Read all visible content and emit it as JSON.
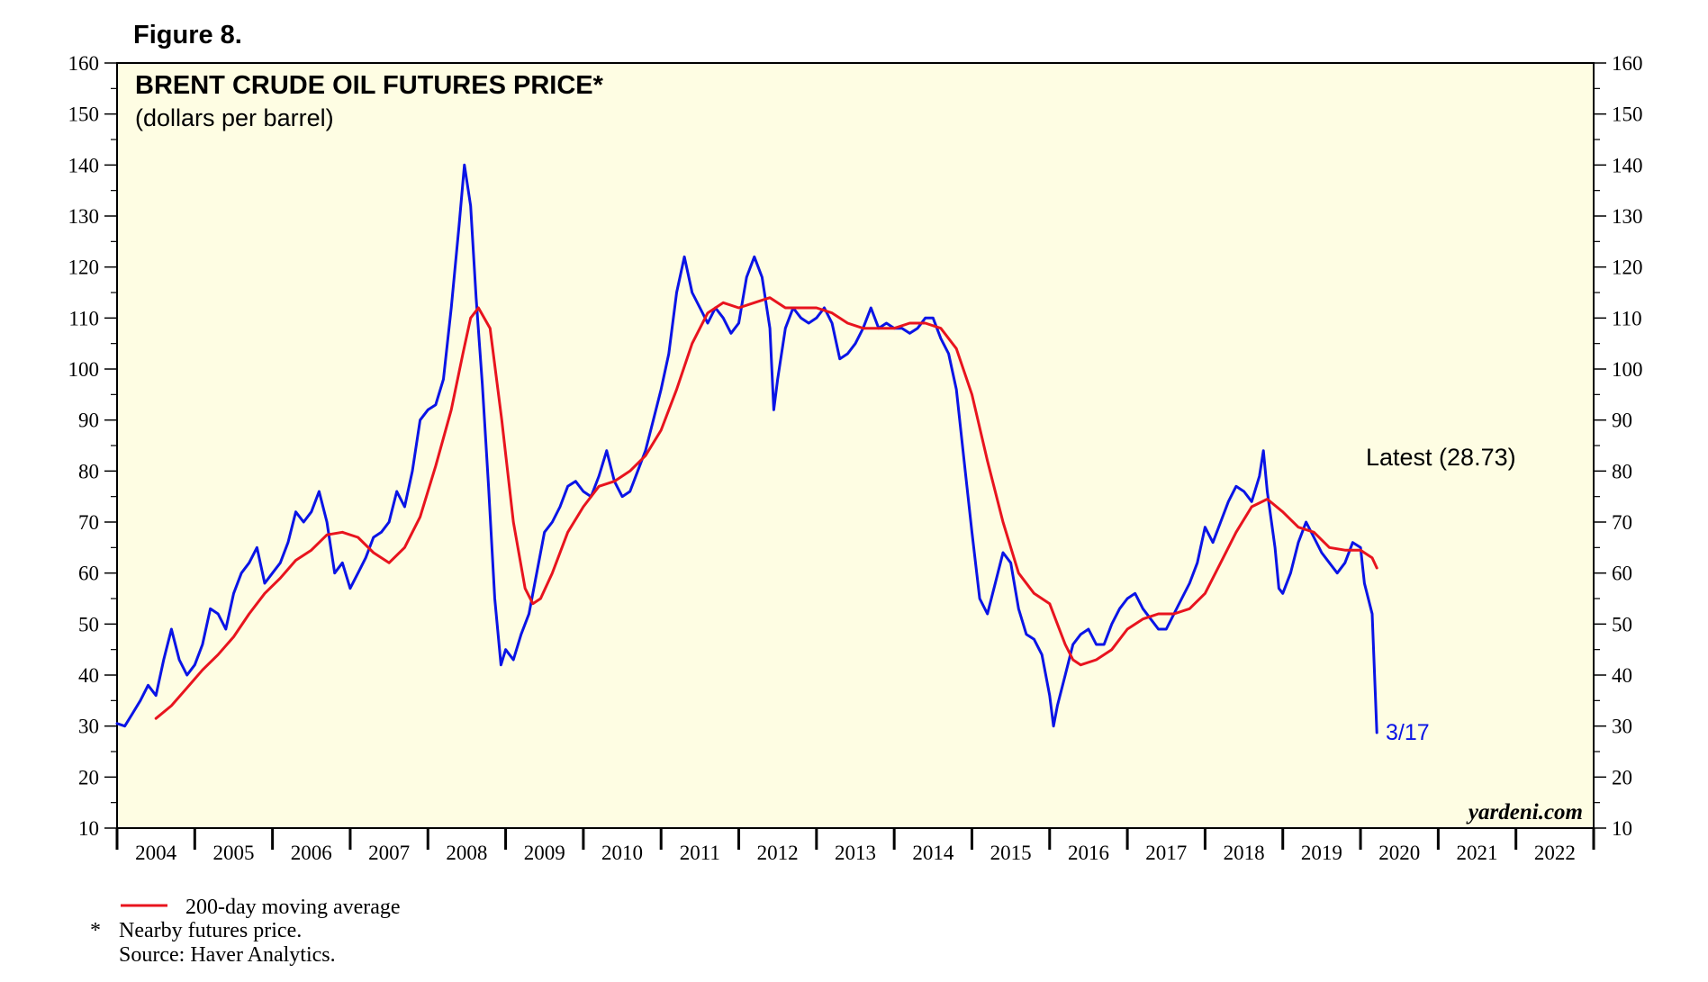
{
  "figure_label": "Figure 8.",
  "watermark": "yardeni.com",
  "footnotes": {
    "legend_ma": "200-day moving average",
    "asterisk": "*",
    "note": "Nearby futures price.",
    "source": "Source: Haver Analytics."
  },
  "colors": {
    "price": "#0a14e6",
    "moving_average": "#e8141e",
    "plot_bg": "#fefde3",
    "frame": "#000000"
  },
  "chart_data": {
    "type": "line",
    "title": "BRENT CRUDE OIL FUTURES PRICE*",
    "subtitle": "(dollars per barrel)",
    "ylim": [
      10,
      160
    ],
    "yticks": [
      10,
      20,
      30,
      40,
      50,
      60,
      70,
      80,
      90,
      100,
      110,
      120,
      130,
      140,
      150,
      160
    ],
    "xlim": [
      2004.0,
      2023.0
    ],
    "x_tick_labels": [
      "2004",
      "2005",
      "2006",
      "2007",
      "2008",
      "2009",
      "2010",
      "2011",
      "2012",
      "2013",
      "2014",
      "2015",
      "2016",
      "2017",
      "2018",
      "2019",
      "2020",
      "2021",
      "2022"
    ],
    "latest_label": "Latest (28.73)",
    "latest_date_label": "3/17",
    "latest_value": 28.73,
    "series": [
      {
        "name": "Brent crude oil futures price",
        "color": "#0a14e6",
        "x": [
          2004.0,
          2004.1,
          2004.2,
          2004.3,
          2004.4,
          2004.5,
          2004.6,
          2004.7,
          2004.8,
          2004.9,
          2005.0,
          2005.1,
          2005.2,
          2005.3,
          2005.4,
          2005.5,
          2005.6,
          2005.7,
          2005.8,
          2005.9,
          2006.0,
          2006.1,
          2006.2,
          2006.3,
          2006.4,
          2006.5,
          2006.6,
          2006.7,
          2006.8,
          2006.9,
          2007.0,
          2007.1,
          2007.2,
          2007.3,
          2007.4,
          2007.5,
          2007.6,
          2007.7,
          2007.8,
          2007.9,
          2008.0,
          2008.1,
          2008.2,
          2008.3,
          2008.4,
          2008.47,
          2008.55,
          2008.62,
          2008.7,
          2008.78,
          2008.86,
          2008.94,
          2009.0,
          2009.1,
          2009.2,
          2009.3,
          2009.4,
          2009.5,
          2009.6,
          2009.7,
          2009.8,
          2009.9,
          2010.0,
          2010.1,
          2010.2,
          2010.3,
          2010.4,
          2010.5,
          2010.6,
          2010.7,
          2010.8,
          2010.9,
          2011.0,
          2011.1,
          2011.2,
          2011.3,
          2011.4,
          2011.5,
          2011.6,
          2011.7,
          2011.8,
          2011.9,
          2012.0,
          2012.1,
          2012.2,
          2012.3,
          2012.4,
          2012.45,
          2012.5,
          2012.6,
          2012.7,
          2012.8,
          2012.9,
          2013.0,
          2013.1,
          2013.2,
          2013.3,
          2013.4,
          2013.5,
          2013.6,
          2013.7,
          2013.8,
          2013.9,
          2014.0,
          2014.1,
          2014.2,
          2014.3,
          2014.4,
          2014.5,
          2014.6,
          2014.7,
          2014.8,
          2014.9,
          2015.0,
          2015.1,
          2015.2,
          2015.3,
          2015.4,
          2015.5,
          2015.6,
          2015.7,
          2015.8,
          2015.9,
          2016.0,
          2016.05,
          2016.1,
          2016.2,
          2016.3,
          2016.4,
          2016.5,
          2016.6,
          2016.7,
          2016.8,
          2016.9,
          2017.0,
          2017.1,
          2017.2,
          2017.3,
          2017.4,
          2017.5,
          2017.6,
          2017.7,
          2017.8,
          2017.9,
          2018.0,
          2018.1,
          2018.2,
          2018.3,
          2018.4,
          2018.5,
          2018.6,
          2018.7,
          2018.75,
          2018.8,
          2018.9,
          2018.95,
          2019.0,
          2019.1,
          2019.2,
          2019.3,
          2019.4,
          2019.5,
          2019.6,
          2019.7,
          2019.8,
          2019.9,
          2020.0,
          2020.05,
          2020.1,
          2020.15,
          2020.21
        ],
        "values": [
          30.5,
          30.0,
          32.5,
          35.0,
          38.0,
          36.0,
          43.0,
          49.0,
          43.0,
          40.0,
          42.0,
          46.0,
          53.0,
          52.0,
          49.0,
          56.0,
          60.0,
          62.0,
          65.0,
          58.0,
          60.0,
          62.0,
          66.0,
          72.0,
          70.0,
          72.0,
          76.0,
          70.0,
          60.0,
          62.0,
          57.0,
          60.0,
          63.0,
          67.0,
          68.0,
          70.0,
          76.0,
          73.0,
          80.0,
          90.0,
          92.0,
          93.0,
          98.0,
          112.0,
          128.0,
          140.0,
          132.0,
          114.0,
          97.0,
          77.0,
          55.0,
          42.0,
          45.0,
          43.0,
          48.0,
          52.0,
          60.0,
          68.0,
          70.0,
          73.0,
          77.0,
          78.0,
          76.0,
          75.0,
          79.0,
          84.0,
          78.0,
          75.0,
          76.0,
          80.0,
          84.0,
          90.0,
          96.0,
          103.0,
          115.0,
          122.0,
          115.0,
          112.0,
          109.0,
          112.0,
          110.0,
          107.0,
          109.0,
          118.0,
          122.0,
          118.0,
          108.0,
          92.0,
          98.0,
          108.0,
          112.0,
          110.0,
          109.0,
          110.0,
          112.0,
          109.0,
          102.0,
          103.0,
          105.0,
          108.0,
          112.0,
          108.0,
          109.0,
          108.0,
          108.0,
          107.0,
          108.0,
          110.0,
          110.0,
          106.0,
          103.0,
          96.0,
          82.0,
          68.0,
          55.0,
          52.0,
          58.0,
          64.0,
          62.0,
          53.0,
          48.0,
          47.0,
          44.0,
          36.0,
          30.0,
          34.0,
          40.0,
          46.0,
          48.0,
          49.0,
          46.0,
          46.0,
          50.0,
          53.0,
          55.0,
          56.0,
          53.0,
          51.0,
          49.0,
          49.0,
          52.0,
          55.0,
          58.0,
          62.0,
          69.0,
          66.0,
          70.0,
          74.0,
          77.0,
          76.0,
          74.0,
          79.0,
          84.0,
          76.0,
          65.0,
          57.0,
          56.0,
          60.0,
          66.0,
          70.0,
          67.0,
          64.0,
          62.0,
          60.0,
          62.0,
          66.0,
          65.0,
          58.0,
          55.0,
          52.0,
          28.73
        ]
      },
      {
        "name": "200-day moving average",
        "color": "#e8141e",
        "x": [
          2004.5,
          2004.7,
          2004.9,
          2005.1,
          2005.3,
          2005.5,
          2005.7,
          2005.9,
          2006.1,
          2006.3,
          2006.5,
          2006.7,
          2006.9,
          2007.1,
          2007.3,
          2007.5,
          2007.7,
          2007.9,
          2008.1,
          2008.3,
          2008.45,
          2008.55,
          2008.65,
          2008.8,
          2008.95,
          2009.1,
          2009.25,
          2009.35,
          2009.45,
          2009.6,
          2009.8,
          2010.0,
          2010.2,
          2010.4,
          2010.6,
          2010.8,
          2011.0,
          2011.2,
          2011.4,
          2011.6,
          2011.8,
          2012.0,
          2012.2,
          2012.4,
          2012.6,
          2012.8,
          2013.0,
          2013.2,
          2013.4,
          2013.6,
          2013.8,
          2014.0,
          2014.2,
          2014.4,
          2014.6,
          2014.8,
          2015.0,
          2015.2,
          2015.4,
          2015.6,
          2015.8,
          2016.0,
          2016.1,
          2016.2,
          2016.3,
          2016.4,
          2016.6,
          2016.8,
          2017.0,
          2017.2,
          2017.4,
          2017.6,
          2017.8,
          2018.0,
          2018.2,
          2018.4,
          2018.6,
          2018.8,
          2019.0,
          2019.2,
          2019.4,
          2019.6,
          2019.8,
          2020.0,
          2020.15,
          2020.21
        ],
        "values": [
          31.5,
          34.0,
          37.5,
          41.0,
          44.0,
          47.5,
          52.0,
          56.0,
          59.0,
          62.5,
          64.5,
          67.5,
          68.0,
          67.0,
          64.0,
          62.0,
          65.0,
          71.0,
          81.0,
          92.0,
          103.0,
          110.0,
          112.0,
          108.0,
          90.0,
          70.0,
          57.0,
          54.0,
          55.0,
          60.0,
          68.0,
          73.0,
          77.0,
          78.0,
          80.0,
          83.0,
          88.0,
          96.0,
          105.0,
          111.0,
          113.0,
          112.0,
          113.0,
          114.0,
          112.0,
          112.0,
          112.0,
          111.0,
          109.0,
          108.0,
          108.0,
          108.0,
          109.0,
          109.0,
          108.0,
          104.0,
          95.0,
          82.0,
          70.0,
          60.0,
          56.0,
          54.0,
          50.0,
          46.0,
          43.0,
          42.0,
          43.0,
          45.0,
          49.0,
          51.0,
          52.0,
          52.0,
          53.0,
          56.0,
          62.0,
          68.0,
          73.0,
          74.5,
          72.0,
          69.0,
          68.0,
          65.0,
          64.5,
          64.5,
          63.0,
          61.0
        ]
      }
    ]
  }
}
